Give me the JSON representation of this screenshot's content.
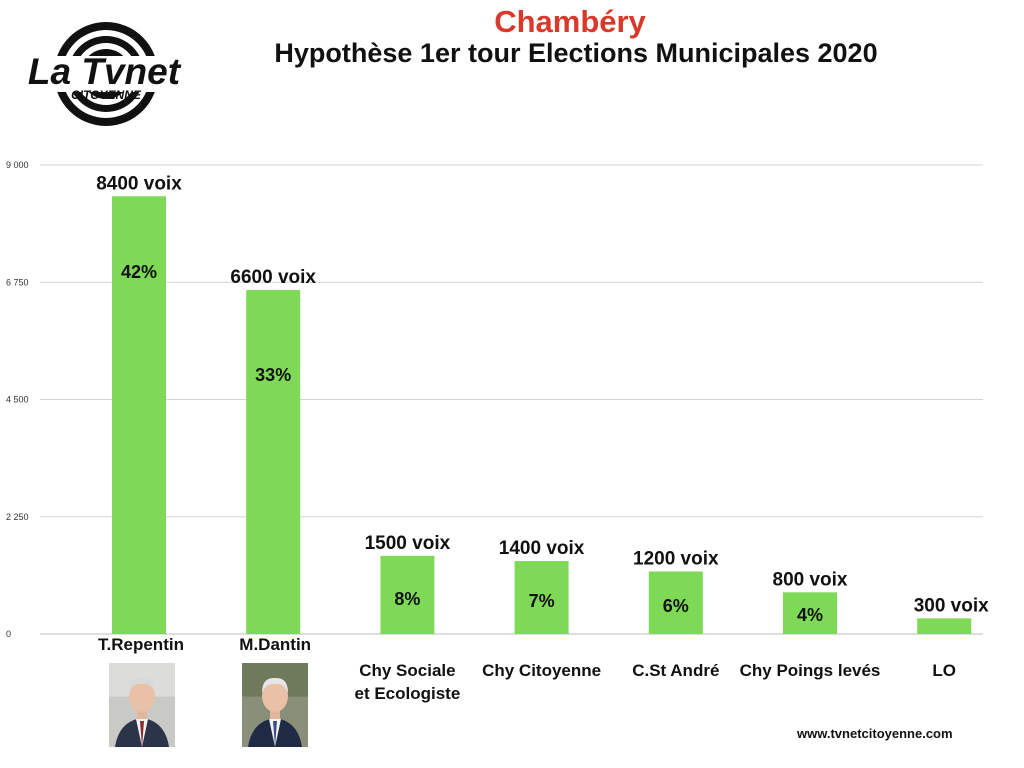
{
  "header": {
    "city": "Chambéry",
    "title": "Hypothèse 1er tour Elections Municipales 2020"
  },
  "logo": {
    "text_main": "La Tvnet",
    "text_sub": "CITOYENNE"
  },
  "footer": {
    "website": "www.tvnetcitoyenne.com"
  },
  "colors": {
    "bar": "#7ed957",
    "city_title": "#d9382b",
    "grid": "#d4d4d4",
    "text": "#111111"
  },
  "candidates": [
    {
      "name": "T.Repentin",
      "photo": "portrait-photo"
    },
    {
      "name": "M.Dantin",
      "photo": "portrait-photo"
    }
  ],
  "chart_data": {
    "type": "bar",
    "categories": [
      "T.Repentin",
      "M.Dantin",
      "Chy Sociale\net Ecologiste",
      "Chy Citoyenne",
      "C.St André",
      "Chy Poings levés",
      "LO"
    ],
    "values": [
      8400,
      6600,
      1500,
      1400,
      1200,
      800,
      300
    ],
    "value_labels": [
      "8400 voix",
      "6600 voix",
      "1500 voix",
      "1400 voix",
      "1200 voix",
      "800 voix",
      "300 voix"
    ],
    "percent_labels": [
      "42%",
      "33%",
      "8%",
      "7%",
      "6%",
      "4%",
      ""
    ],
    "yticks": [
      0,
      2250,
      4500,
      6750,
      9000
    ],
    "ytick_labels": [
      "0",
      "2 250",
      "4 500",
      "6 750",
      "9 000"
    ],
    "ylim": [
      0,
      9000
    ],
    "grid": true,
    "legend": "none"
  }
}
